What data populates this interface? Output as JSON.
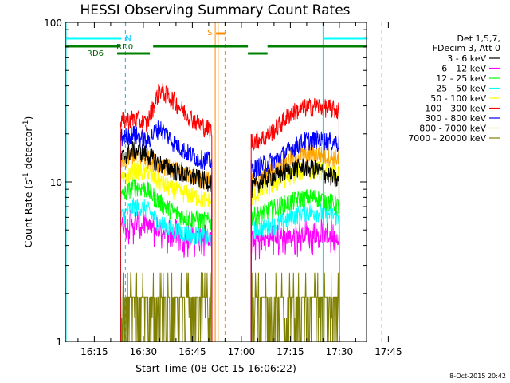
{
  "chart_data": {
    "type": "line",
    "title": "HESSI Observing Summary Count Rates",
    "xlabel": "Start Time (08-Oct-15 16:06:22)",
    "ylabel_main": "Count Rate (s",
    "ylabel_sup1": "-1",
    "ylabel_mid": " detector",
    "ylabel_sup2": "-1",
    "ylabel_end": ")",
    "yscale": "log",
    "ylim": [
      1,
      100
    ],
    "xlim_minutes": [
      -10,
      82
    ],
    "x_ticks": [
      {
        "m": 15,
        "label": "16:15"
      },
      {
        "m": 30,
        "label": "16:30"
      },
      {
        "m": 45,
        "label": "16:45"
      },
      {
        "m": 60,
        "label": "17:00"
      },
      {
        "m": 75,
        "label": "17:15"
      },
      {
        "m": 90,
        "label": "17:30"
      },
      {
        "m": 105,
        "label": "17:45"
      }
    ],
    "y_ticks": [
      {
        "v": 1,
        "label": "1"
      },
      {
        "v": 10,
        "label": "10"
      },
      {
        "v": 100,
        "label": "100"
      }
    ],
    "legend_header": [
      "Det 1,5,7,",
      "FDecim 3, Att 0"
    ],
    "series": [
      {
        "name": "3 - 6 keV",
        "color": "#000000",
        "day1": [
          [
            23,
            14
          ],
          [
            27,
            16
          ],
          [
            31,
            15
          ],
          [
            35,
            13
          ],
          [
            39,
            12
          ],
          [
            43,
            11
          ],
          [
            47,
            10.5
          ],
          [
            51,
            10
          ]
        ],
        "day2": [
          [
            63,
            9
          ],
          [
            67,
            10.5
          ],
          [
            71,
            11
          ],
          [
            75,
            12
          ],
          [
            79,
            12.5
          ],
          [
            83,
            12
          ],
          [
            87,
            11
          ],
          [
            90,
            10
          ]
        ]
      },
      {
        "name": "6 - 12 keV",
        "color": "#ff00ff",
        "day1": [
          [
            23,
            5.5
          ],
          [
            27,
            5.5
          ],
          [
            31,
            5.3
          ],
          [
            35,
            5
          ],
          [
            39,
            4.8
          ],
          [
            43,
            4.6
          ],
          [
            47,
            4.5
          ],
          [
            51,
            4.4
          ]
        ],
        "day2": [
          [
            63,
            4.3
          ],
          [
            67,
            4.4
          ],
          [
            71,
            4.5
          ],
          [
            75,
            4.6
          ],
          [
            79,
            4.7
          ],
          [
            83,
            4.7
          ],
          [
            87,
            4.6
          ],
          [
            90,
            4.5
          ]
        ]
      },
      {
        "name": "12 - 25 keV",
        "color": "#00ff00",
        "day1": [
          [
            23,
            8
          ],
          [
            27,
            9.5
          ],
          [
            31,
            9
          ],
          [
            35,
            7.5
          ],
          [
            39,
            6.5
          ],
          [
            43,
            6
          ],
          [
            47,
            5.8
          ],
          [
            51,
            5.6
          ]
        ],
        "day2": [
          [
            63,
            6
          ],
          [
            67,
            6.5
          ],
          [
            71,
            7
          ],
          [
            75,
            7.5
          ],
          [
            79,
            8
          ],
          [
            83,
            8
          ],
          [
            87,
            7.5
          ],
          [
            90,
            7
          ]
        ]
      },
      {
        "name": "25 - 50 keV",
        "color": "#00ffff",
        "day1": [
          [
            23,
            6
          ],
          [
            27,
            7
          ],
          [
            31,
            6.8
          ],
          [
            35,
            5.5
          ],
          [
            39,
            5
          ],
          [
            43,
            4.8
          ],
          [
            47,
            4.6
          ],
          [
            51,
            4.4
          ]
        ],
        "day2": [
          [
            63,
            5
          ],
          [
            67,
            5.2
          ],
          [
            71,
            5.4
          ],
          [
            75,
            6
          ],
          [
            79,
            6.5
          ],
          [
            83,
            6.5
          ],
          [
            87,
            6.3
          ],
          [
            90,
            6
          ]
        ]
      },
      {
        "name": "50 - 100 keV",
        "color": "#ffff00",
        "day1": [
          [
            23,
            10
          ],
          [
            27,
            12
          ],
          [
            31,
            11.5
          ],
          [
            35,
            10
          ],
          [
            39,
            9
          ],
          [
            43,
            8.5
          ],
          [
            47,
            8
          ],
          [
            51,
            7.5
          ]
        ],
        "day2": [
          [
            63,
            8
          ],
          [
            67,
            9
          ],
          [
            71,
            10
          ],
          [
            75,
            11
          ],
          [
            79,
            12
          ],
          [
            83,
            12
          ],
          [
            87,
            11.5
          ],
          [
            90,
            11
          ]
        ]
      },
      {
        "name": "100 - 300 keV",
        "color": "#ff0000",
        "day1": [
          [
            23,
            24
          ],
          [
            27,
            25
          ],
          [
            31,
            23
          ],
          [
            35,
            38
          ],
          [
            39,
            33
          ],
          [
            43,
            27
          ],
          [
            47,
            23
          ],
          [
            51,
            21
          ]
        ],
        "day2": [
          [
            63,
            18
          ],
          [
            67,
            19
          ],
          [
            71,
            22
          ],
          [
            75,
            27
          ],
          [
            79,
            29
          ],
          [
            83,
            30
          ],
          [
            87,
            29
          ],
          [
            90,
            28
          ]
        ]
      },
      {
        "name": "300 - 800 keV",
        "color": "#0000ff",
        "day1": [
          [
            23,
            19
          ],
          [
            27,
            20
          ],
          [
            31,
            18
          ],
          [
            35,
            22
          ],
          [
            39,
            18
          ],
          [
            43,
            15.5
          ],
          [
            47,
            14
          ],
          [
            51,
            13.5
          ]
        ],
        "day2": [
          [
            63,
            12
          ],
          [
            67,
            13
          ],
          [
            71,
            14
          ],
          [
            75,
            16
          ],
          [
            79,
            18
          ],
          [
            83,
            18.5
          ],
          [
            87,
            18
          ],
          [
            90,
            17.5
          ]
        ]
      },
      {
        "name": "800 - 7000 keV",
        "color": "#ffa500",
        "day1": [
          [
            23,
            13
          ],
          [
            27,
            15
          ],
          [
            31,
            14
          ],
          [
            35,
            13
          ],
          [
            39,
            12
          ],
          [
            43,
            11.5
          ],
          [
            47,
            10.5
          ],
          [
            51,
            10
          ]
        ],
        "day2": [
          [
            63,
            10
          ],
          [
            67,
            11
          ],
          [
            71,
            12
          ],
          [
            75,
            14
          ],
          [
            79,
            15
          ],
          [
            83,
            15
          ],
          [
            87,
            14.5
          ],
          [
            90,
            14
          ]
        ]
      },
      {
        "name": "7000 - 20000 keV",
        "color": "#808000",
        "day1": [
          [
            23,
            1.8
          ],
          [
            27,
            1.8
          ],
          [
            31,
            2.2
          ],
          [
            35,
            2.3
          ],
          [
            39,
            1.8
          ],
          [
            43,
            1.5
          ],
          [
            47,
            1.3
          ],
          [
            51,
            1.2
          ]
        ],
        "day2": [
          [
            63,
            1.1
          ],
          [
            67,
            1.2
          ],
          [
            71,
            1.1
          ],
          [
            75,
            1.6
          ],
          [
            79,
            1.8
          ],
          [
            83,
            1.9
          ],
          [
            87,
            1.8
          ],
          [
            90,
            1.7
          ]
        ]
      }
    ],
    "intervals": {
      "data_day1": [
        23,
        51
      ],
      "data_day2": [
        63,
        90
      ],
      "saa": [
        52,
        55
      ],
      "night_a": [
        -10,
        24
      ],
      "night_b": [
        85,
        103
      ]
    },
    "annotations": {
      "n_label": "N",
      "s_label": "S",
      "rd0_label": "RD0",
      "rd6_label": "RD6"
    },
    "timestamp": "8-Oct-2015 20:42"
  }
}
